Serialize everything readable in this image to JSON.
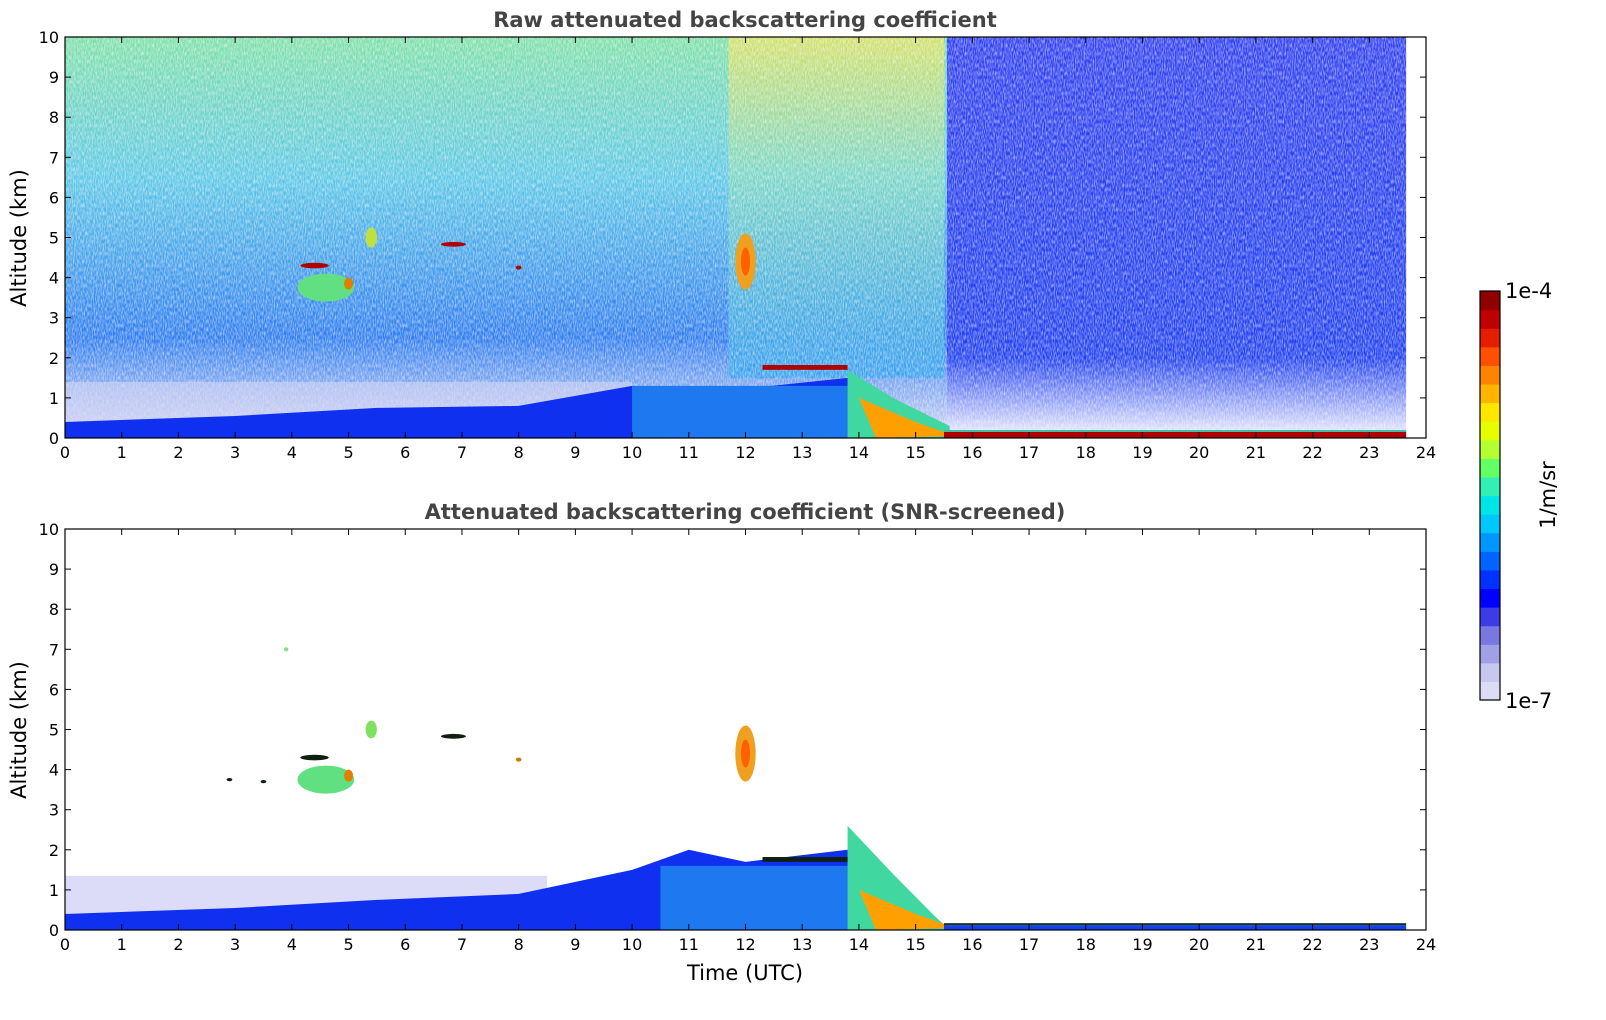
{
  "chart_data": [
    {
      "type": "heatmap",
      "title": "Raw attenuated backscattering coefficient",
      "xlabel": "",
      "ylabel": "Altitude (km)",
      "xlim": [
        0,
        24
      ],
      "ylim": [
        0,
        10
      ],
      "xticks": [
        "0",
        "1",
        "2",
        "3",
        "4",
        "5",
        "6",
        "7",
        "8",
        "9",
        "10",
        "11",
        "12",
        "13",
        "14",
        "15",
        "16",
        "17",
        "18",
        "19",
        "20",
        "21",
        "22",
        "23",
        "24"
      ],
      "yticks": [
        "0",
        "1",
        "2",
        "3",
        "4",
        "5",
        "6",
        "7",
        "8",
        "9",
        "10"
      ],
      "data_end_time": 23.65,
      "features": [
        {
          "name": "boundary layer",
          "t": [
            0,
            10
          ],
          "alt": [
            0,
            0.7
          ]
        },
        {
          "name": "aerosol/fog layer",
          "t": [
            14,
            15.6
          ],
          "alt": [
            0,
            1.6
          ]
        },
        {
          "name": "surface layer",
          "t": [
            15.6,
            23.65
          ],
          "alt": [
            0,
            0.15
          ]
        },
        {
          "name": "cloud",
          "t": [
            12.3,
            13.8
          ],
          "alt": [
            1.7,
            1.8
          ]
        },
        {
          "name": "cloud",
          "t": [
            4.2,
            4.7
          ],
          "alt": [
            4.25,
            4.35
          ]
        },
        {
          "name": "cloud",
          "t": [
            6.5,
            7.2
          ],
          "alt": [
            4.75,
            4.9
          ]
        },
        {
          "name": "ice cloud",
          "t": [
            11.8,
            12.2
          ],
          "alt": [
            3.8,
            5.2
          ]
        }
      ]
    },
    {
      "type": "heatmap",
      "title": "Attenuated backscattering coefficient (SNR-screened)",
      "xlabel": "Time (UTC)",
      "ylabel": "Altitude (km)",
      "xlim": [
        0,
        24
      ],
      "ylim": [
        0,
        10
      ],
      "xticks": [
        "0",
        "1",
        "2",
        "3",
        "4",
        "5",
        "6",
        "7",
        "8",
        "9",
        "10",
        "11",
        "12",
        "13",
        "14",
        "15",
        "16",
        "17",
        "18",
        "19",
        "20",
        "21",
        "22",
        "23",
        "24"
      ],
      "yticks": [
        "0",
        "1",
        "2",
        "3",
        "4",
        "5",
        "6",
        "7",
        "8",
        "9",
        "10"
      ],
      "data_end_time": 23.65
    }
  ],
  "colorbar": {
    "label": "1/m/sr",
    "min_label": "1e-7",
    "max_label": "1e-4",
    "scale": "log",
    "colors": [
      "#dcdcf5",
      "#c8c8ee",
      "#a0a0e6",
      "#7878e0",
      "#3c3ce6",
      "#0000ff",
      "#0032ff",
      "#0064ff",
      "#0096ff",
      "#00c8ff",
      "#00e6e6",
      "#32f0b4",
      "#64ff64",
      "#b4ff32",
      "#e6ff00",
      "#ffe600",
      "#ffb400",
      "#ff8200",
      "#ff5000",
      "#e61e00",
      "#c00000",
      "#900000"
    ]
  }
}
